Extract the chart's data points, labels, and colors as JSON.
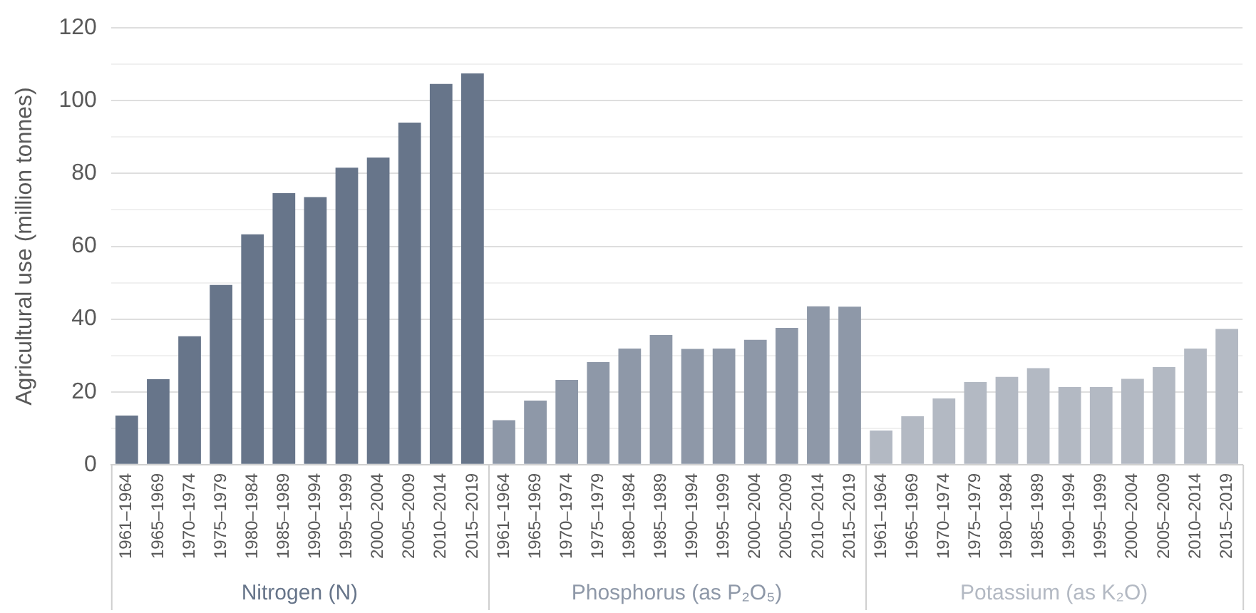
{
  "chart_data": {
    "type": "bar",
    "ylabel": "Agricultural use (million tonnes)",
    "categories": [
      "1961–1964",
      "1965–1969",
      "1970–1974",
      "1975–1979",
      "1980–1984",
      "1985–1989",
      "1990–1994",
      "1995–1999",
      "2000–2004",
      "2005–2009",
      "2010–2014",
      "2015–2019",
      "1961–1964",
      "1965–1969",
      "1970–1974",
      "1975–1979",
      "1980–1984",
      "1985–1989",
      "1990–1994",
      "1995–1999",
      "2000–2004",
      "2005–2009",
      "2010–2014",
      "2015–2019",
      "1961–1964",
      "1965–1969",
      "1970–1974",
      "1975–1979",
      "1980–1984",
      "1985–1989",
      "1990–1994",
      "1995–1999",
      "2000–2004",
      "2005–2009",
      "2010–2014",
      "2015–2019"
    ],
    "series": [
      {
        "name": "Nitrogen (N)",
        "color": "#67758a",
        "values": [
          13.5,
          23.5,
          35.3,
          49.4,
          63.3,
          74.6,
          73.5,
          81.6,
          84.4,
          94,
          104.6,
          107.5,
          null,
          null,
          null,
          null,
          null,
          null,
          null,
          null,
          null,
          null,
          null,
          null,
          null,
          null,
          null,
          null,
          null,
          null,
          null,
          null,
          null,
          null,
          null,
          null
        ]
      },
      {
        "name": "Phosphorus (as P₂O₅)",
        "color": "#8e98a8",
        "values": [
          null,
          null,
          null,
          null,
          null,
          null,
          null,
          null,
          null,
          null,
          null,
          null,
          12.2,
          17.6,
          23.3,
          28.2,
          31.9,
          35.6,
          31.8,
          31.9,
          34.3,
          37.6,
          43.5,
          43.4,
          null,
          null,
          null,
          null,
          null,
          null,
          null,
          null,
          null,
          null,
          null,
          null
        ]
      },
      {
        "name": "Potassium (as K₂O)",
        "color": "#b3b9c3",
        "values": [
          null,
          null,
          null,
          null,
          null,
          null,
          null,
          null,
          null,
          null,
          null,
          null,
          null,
          null,
          null,
          null,
          null,
          null,
          null,
          null,
          null,
          null,
          null,
          null,
          9.4,
          13.3,
          18.2,
          22.7,
          24.1,
          26.5,
          21.3,
          21.3,
          23.6,
          26.8,
          31.9,
          37.3
        ]
      }
    ],
    "ylim": [
      0,
      120
    ],
    "yticks": [
      0,
      {
        "value": 10,
        "label": null
      },
      20,
      {
        "value": 30,
        "label": null
      },
      40,
      {
        "value": 50,
        "label": null
      },
      60,
      {
        "value": 70,
        "label": null
      },
      80,
      {
        "value": 90,
        "label": null
      },
      100,
      {
        "value": 110,
        "label": null
      },
      120
    ],
    "grid": "y",
    "legend": false
  }
}
